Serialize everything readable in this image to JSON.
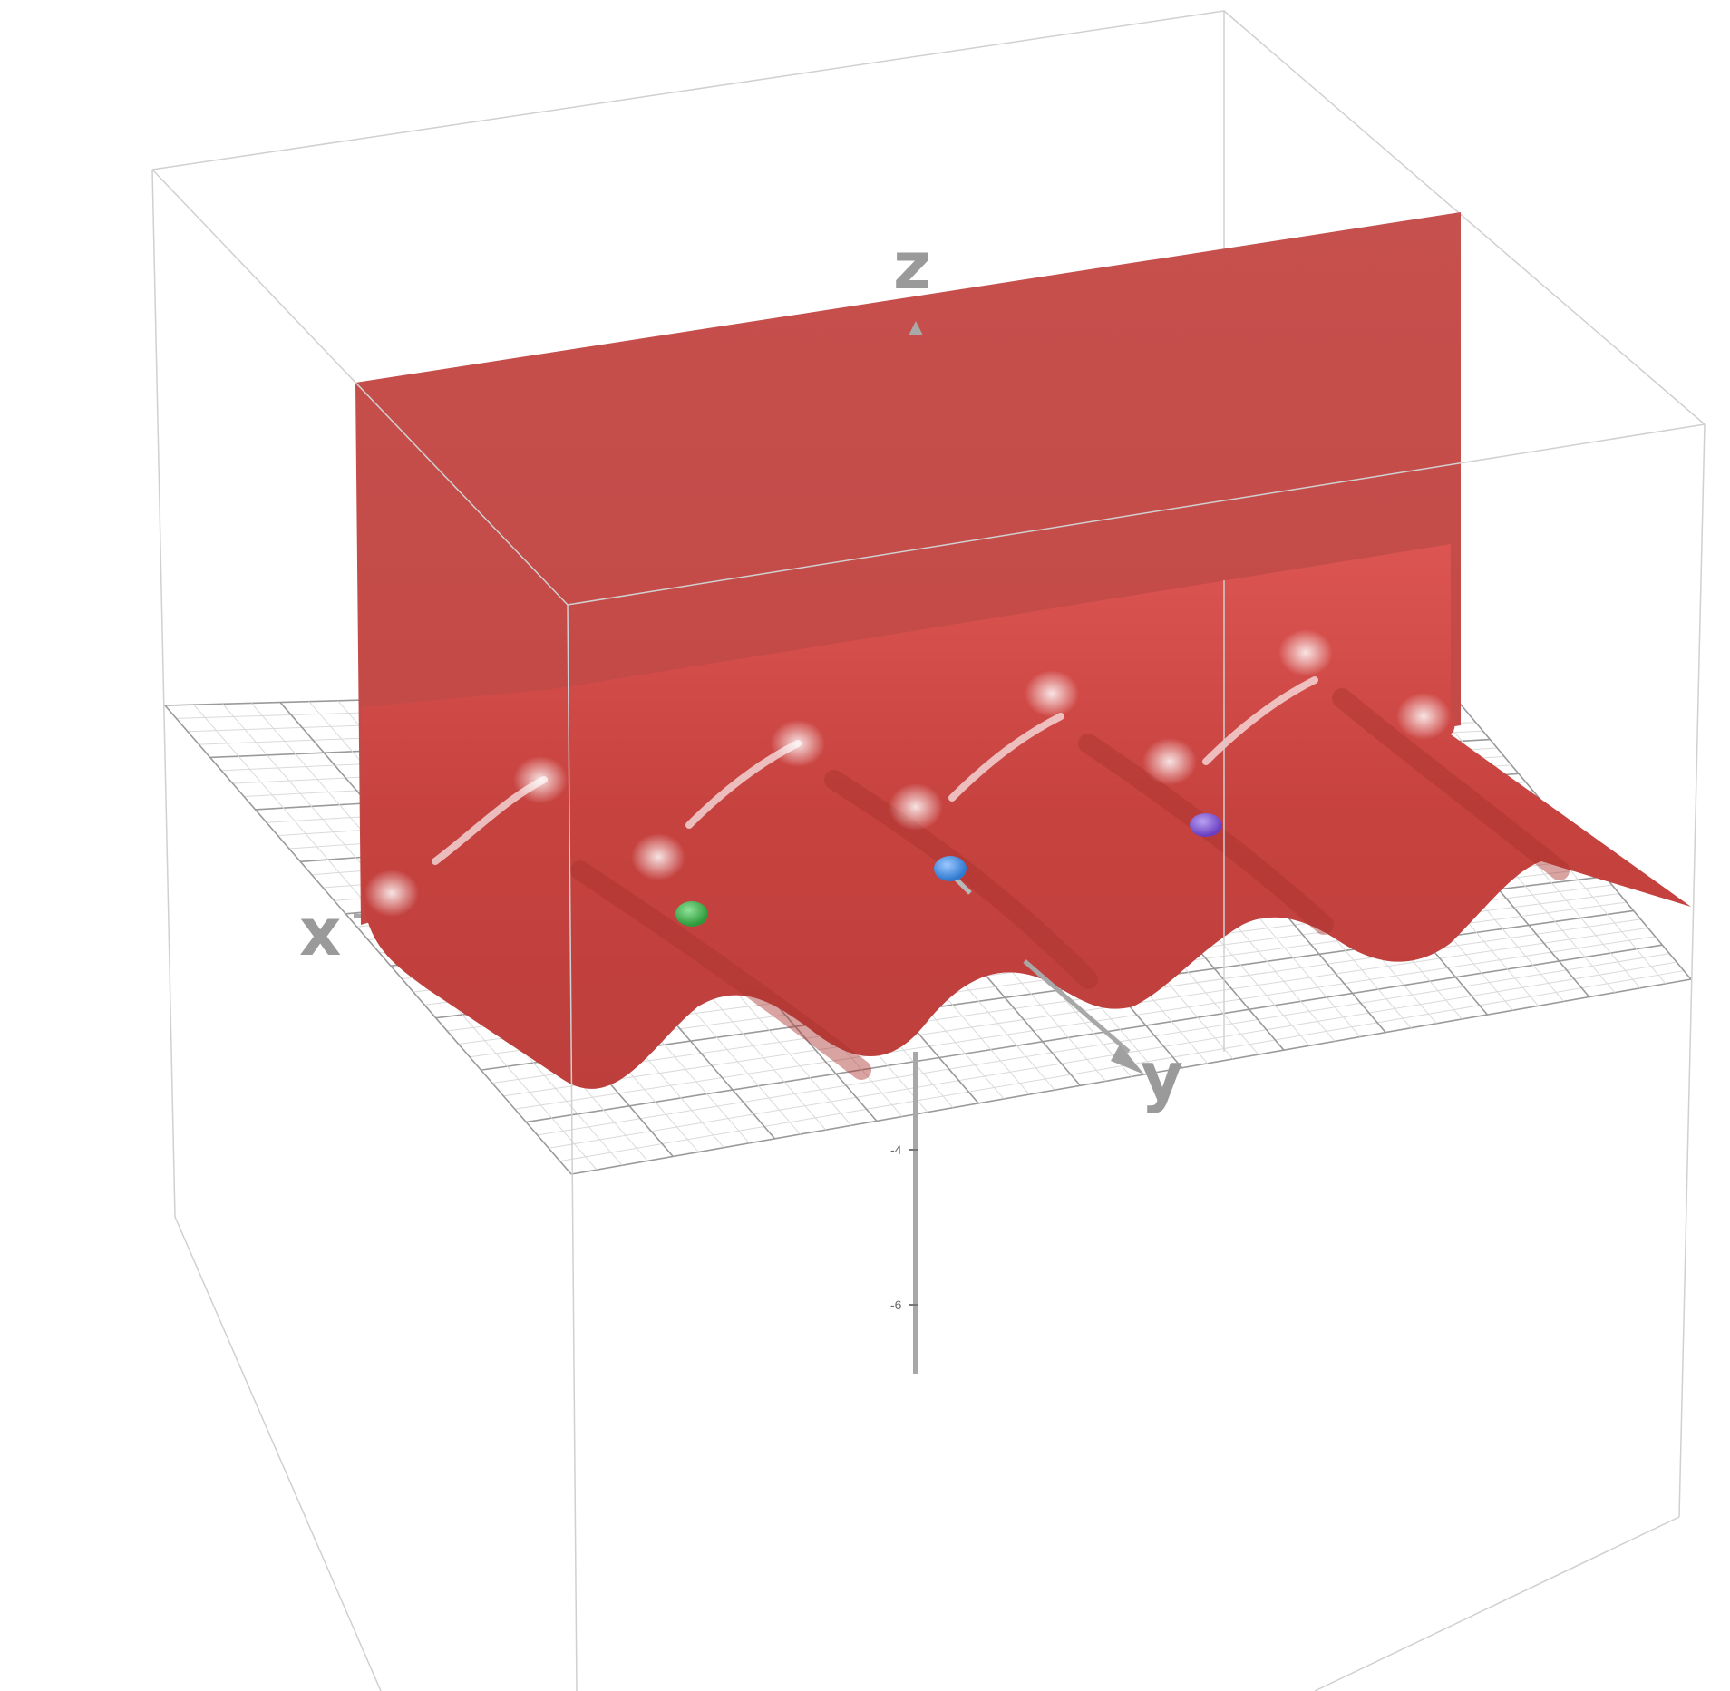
{
  "axes": {
    "x_label": "x",
    "y_label": "y",
    "z_label": "z"
  },
  "z_ticks": [
    {
      "value": -4,
      "label": "-4"
    },
    {
      "value": -6,
      "label": "-6"
    }
  ],
  "surface": {
    "color": "#c74845",
    "highlight": "#f2a9a6"
  },
  "points": [
    {
      "name": "green-point",
      "color": "#2e9a3a"
    },
    {
      "name": "blue-point",
      "color": "#2f79cf"
    },
    {
      "name": "purple-point",
      "color": "#6a3fc0"
    }
  ],
  "colors": {
    "box": "#cfcfcf",
    "grid": "#d8d8d8",
    "axis": "#a8a8a8"
  }
}
